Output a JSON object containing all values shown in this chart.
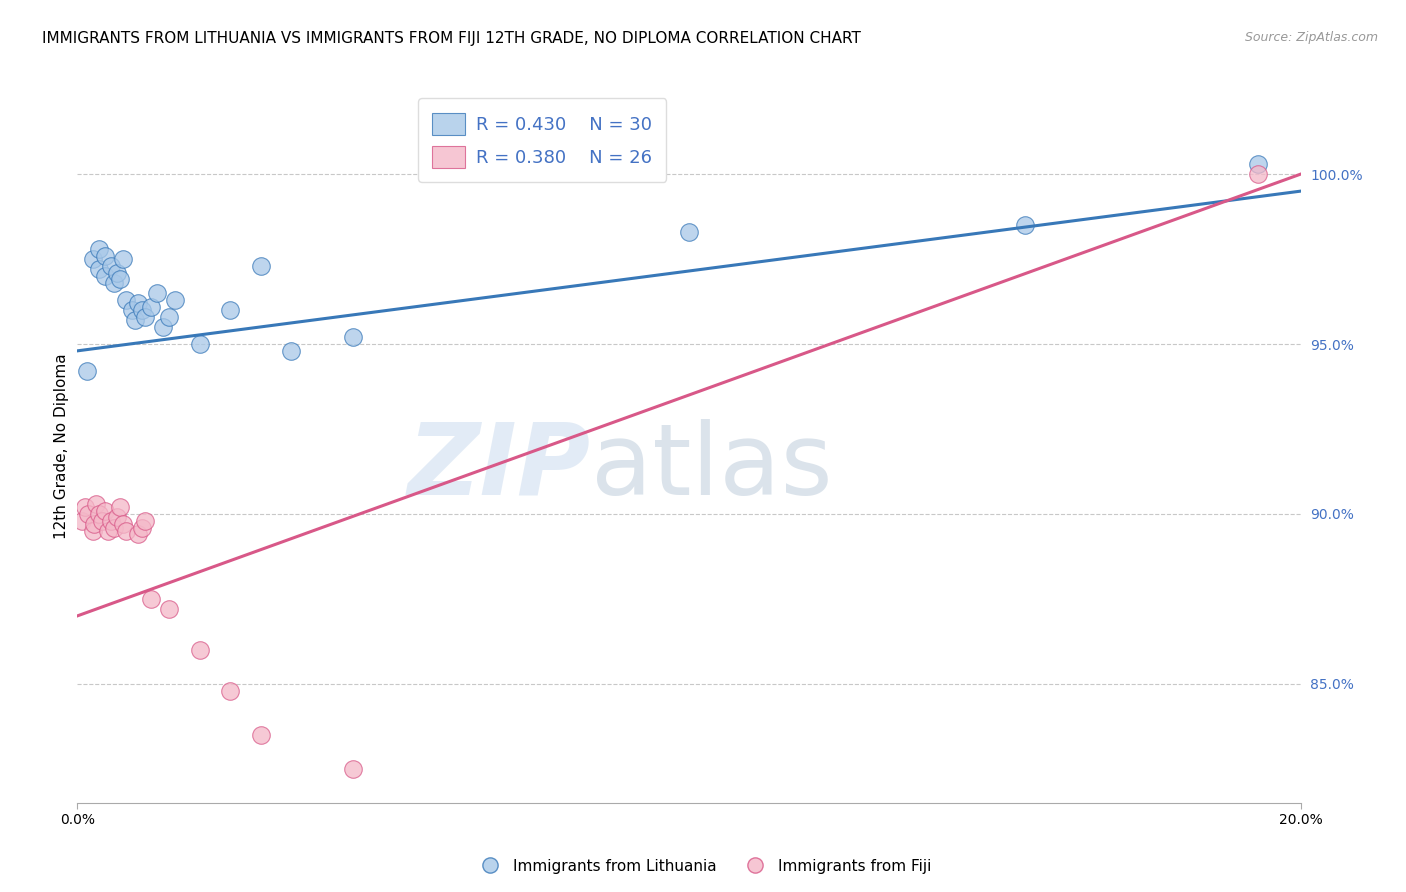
{
  "title": "IMMIGRANTS FROM LITHUANIA VS IMMIGRANTS FROM FIJI 12TH GRADE, NO DIPLOMA CORRELATION CHART",
  "source": "Source: ZipAtlas.com",
  "ylabel": "12th Grade, No Diploma",
  "yticks": [
    100.0,
    95.0,
    90.0,
    85.0
  ],
  "ytick_labels": [
    "100.0%",
    "95.0%",
    "90.0%",
    "85.0%"
  ],
  "xlim": [
    0.0,
    20.0
  ],
  "ylim": [
    81.5,
    102.5
  ],
  "legend_blue_R": "R = 0.430",
  "legend_blue_N": "N = 30",
  "legend_pink_R": "R = 0.380",
  "legend_pink_N": "N = 26",
  "blue_scatter_x": [
    0.15,
    0.25,
    0.35,
    0.35,
    0.45,
    0.45,
    0.55,
    0.6,
    0.65,
    0.7,
    0.75,
    0.8,
    0.9,
    0.95,
    1.0,
    1.05,
    1.1,
    1.2,
    1.3,
    1.4,
    1.5,
    1.6,
    2.0,
    2.5,
    3.0,
    3.5,
    4.5,
    10.0,
    15.5,
    19.3
  ],
  "blue_scatter_y": [
    94.2,
    97.5,
    97.8,
    97.2,
    97.6,
    97.0,
    97.3,
    96.8,
    97.1,
    96.9,
    97.5,
    96.3,
    96.0,
    95.7,
    96.2,
    96.0,
    95.8,
    96.1,
    96.5,
    95.5,
    95.8,
    96.3,
    95.0,
    96.0,
    97.3,
    94.8,
    95.2,
    98.3,
    98.5,
    100.3
  ],
  "blue_line_x": [
    0.0,
    20.0
  ],
  "blue_line_y": [
    94.8,
    99.5
  ],
  "pink_scatter_x": [
    0.08,
    0.12,
    0.18,
    0.25,
    0.28,
    0.3,
    0.35,
    0.4,
    0.45,
    0.5,
    0.55,
    0.6,
    0.65,
    0.7,
    0.75,
    0.8,
    1.0,
    1.05,
    1.1,
    1.2,
    1.5,
    2.0,
    2.5,
    3.0,
    4.5,
    19.3
  ],
  "pink_scatter_y": [
    89.8,
    90.2,
    90.0,
    89.5,
    89.7,
    90.3,
    90.0,
    89.8,
    90.1,
    89.5,
    89.8,
    89.6,
    89.9,
    90.2,
    89.7,
    89.5,
    89.4,
    89.6,
    89.8,
    87.5,
    87.2,
    86.0,
    84.8,
    83.5,
    82.5,
    100.0
  ],
  "pink_line_x": [
    0.0,
    20.0
  ],
  "pink_line_y": [
    87.0,
    100.0
  ],
  "blue_color": "#a8c8e8",
  "pink_color": "#f4b8c8",
  "blue_line_color": "#3878b8",
  "pink_line_color": "#d85888",
  "watermark_zip": "ZIP",
  "watermark_atlas": "atlas",
  "background_color": "#ffffff",
  "grid_color": "#c8c8c8",
  "right_axis_color": "#4472c4",
  "title_fontsize": 11,
  "axis_label_fontsize": 11,
  "tick_fontsize": 10
}
